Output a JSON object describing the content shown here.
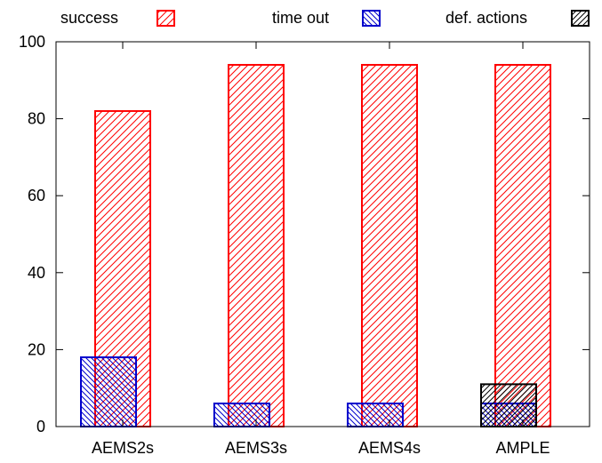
{
  "chart_data": {
    "type": "bar",
    "categories": [
      "AEMS2s",
      "AEMS3s",
      "AEMS4s",
      "AMPLE"
    ],
    "series": [
      {
        "name": "success",
        "values": [
          82,
          94,
          94,
          94
        ],
        "color": "#ff0000",
        "pattern": "hatch-forward"
      },
      {
        "name": "time out",
        "values": [
          18,
          6,
          6,
          6
        ],
        "color": "#0000cc",
        "pattern": "hatch-backward"
      },
      {
        "name": "def. actions",
        "values": [
          0,
          0,
          0,
          11
        ],
        "color": "#000000",
        "pattern": "hatch-forward-dense"
      }
    ],
    "ylim": [
      0,
      100
    ],
    "yticks": [
      "0",
      "20",
      "40",
      "60",
      "80",
      "100"
    ],
    "grid": false,
    "legend_position": "top"
  }
}
